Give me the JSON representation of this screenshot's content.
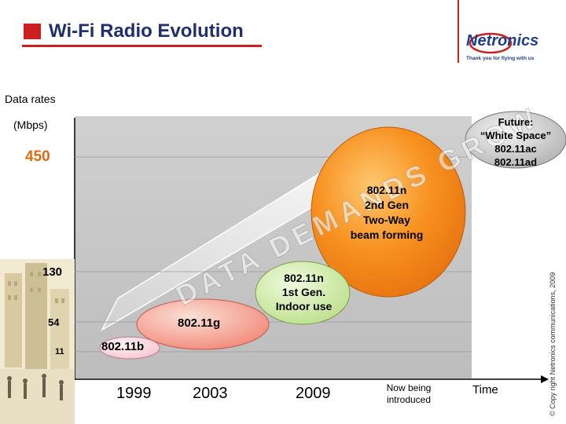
{
  "header": {
    "title": "Wi-Fi Radio Evolution",
    "accent_color": "#cc1f1f",
    "title_color": "#1f2f6b"
  },
  "logo": {
    "brand": "Netronics",
    "tagline": "Thank you for flying with us",
    "brand_color": "#1f3f8f"
  },
  "axis": {
    "y_title": "Data rates",
    "y_unit": "(Mbps)",
    "y_ticks": [
      "450",
      "130",
      "54",
      "11"
    ],
    "x_ticks": [
      "1999",
      "2003",
      "2009",
      "Now being introduced"
    ],
    "x_title": "Time"
  },
  "bubbles": {
    "b11b": "802.11b",
    "b11g": "802.11g",
    "b11n1": [
      "802.11n",
      "1st Gen.",
      "Indoor use"
    ],
    "b11n2": [
      "802.11n",
      "2nd Gen",
      "Two-Way",
      "beam forming"
    ],
    "future": [
      "Future:",
      "“White Space”",
      "802.11ac",
      "802.11ad"
    ]
  },
  "band": {
    "text": "DATA DEMANDS GROW",
    "color": "#ffffff"
  },
  "copyright": "© Copy right Netronics communications, 2009"
}
